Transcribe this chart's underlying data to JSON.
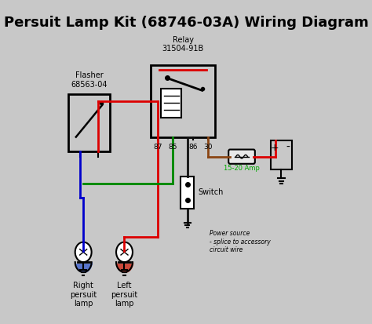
{
  "title": "Persuit Lamp Kit (68746-03A) Wiring Diagram",
  "bg_color": "#c8c8c8",
  "title_color": "#000000",
  "title_fontsize": 13,
  "wire_colors": {
    "red": "#dd0000",
    "blue": "#0000cc",
    "green": "#008800",
    "black": "#111111",
    "brown": "#8B4513"
  },
  "labels": {
    "flasher": "Flasher\n68563-04",
    "relay": "Relay\n31504-91B",
    "relay_pins": [
      "87",
      "85",
      "86",
      "30"
    ],
    "switch": "Switch",
    "fuse": "15-20 Amp",
    "power_note": "Power source\n- splice to accessory\ncircuit wire",
    "right_lamp": "Right\npersuit\nlamp",
    "left_lamp": "Left\npersuit\nlamp"
  }
}
